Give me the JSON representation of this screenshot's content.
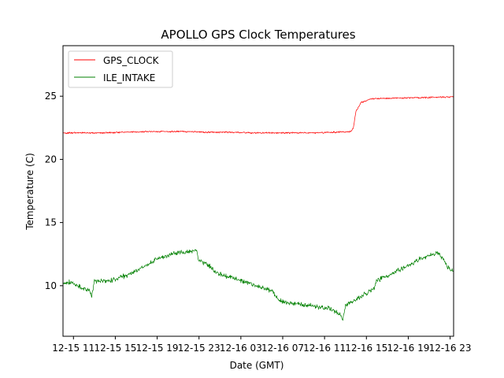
{
  "chart_data": {
    "type": "line",
    "title": "APOLLO GPS Clock Temperatures",
    "xlabel": "Date (GMT)",
    "ylabel": "Temperature (C)",
    "x_ticks": [
      {
        "value": "2020-12-15 11:00",
        "label": "12-15 11"
      },
      {
        "value": "2020-12-15 15:00",
        "label": "12-15 15"
      },
      {
        "value": "2020-12-15 19:00",
        "label": "12-15 19"
      },
      {
        "value": "2020-12-15 23:00",
        "label": "12-15 23"
      },
      {
        "value": "2020-12-16 03:00",
        "label": "12-16 03"
      },
      {
        "value": "2020-12-16 07:00",
        "label": "12-16 07"
      },
      {
        "value": "2020-12-16 11:00",
        "label": "12-16 11"
      },
      {
        "value": "2020-12-16 15:00",
        "label": "12-16 15"
      },
      {
        "value": "2020-12-16 19:00",
        "label": "12-16 19"
      },
      {
        "value": "2020-12-16 23:00",
        "label": "12-16 23"
      }
    ],
    "y_ticks": [
      10,
      15,
      20,
      25
    ],
    "xlim": [
      "2020-12-15 10:00",
      "2020-12-16 23:20"
    ],
    "ylim": [
      6.0,
      29.0
    ],
    "grid": false,
    "legend": "upper-left",
    "series": [
      {
        "name": "GPS_CLOCK",
        "color": "#ff0000",
        "points": [
          [
            "2020-12-15 10:00",
            22.1
          ],
          [
            "2020-12-15 12:00",
            22.1
          ],
          [
            "2020-12-15 14:00",
            22.1
          ],
          [
            "2020-12-15 16:00",
            22.15
          ],
          [
            "2020-12-15 18:00",
            22.2
          ],
          [
            "2020-12-15 20:00",
            22.2
          ],
          [
            "2020-12-15 22:00",
            22.2
          ],
          [
            "2020-12-16 00:00",
            22.15
          ],
          [
            "2020-12-16 02:00",
            22.15
          ],
          [
            "2020-12-16 04:00",
            22.1
          ],
          [
            "2020-12-16 06:00",
            22.1
          ],
          [
            "2020-12-16 08:00",
            22.1
          ],
          [
            "2020-12-16 10:00",
            22.1
          ],
          [
            "2020-12-16 12:00",
            22.15
          ],
          [
            "2020-12-16 13:30",
            22.2
          ],
          [
            "2020-12-16 13:45",
            22.5
          ],
          [
            "2020-12-16 14:00",
            23.8
          ],
          [
            "2020-12-16 14:30",
            24.5
          ],
          [
            "2020-12-16 15:30",
            24.8
          ],
          [
            "2020-12-16 18:00",
            24.85
          ],
          [
            "2020-12-16 21:00",
            24.9
          ],
          [
            "2020-12-16 23:20",
            24.95
          ]
        ]
      },
      {
        "name": "ILE_INTAKE",
        "color": "#008000",
        "points": [
          [
            "2020-12-15 10:00",
            10.2
          ],
          [
            "2020-12-15 10:40",
            10.3
          ],
          [
            "2020-12-15 11:40",
            9.9
          ],
          [
            "2020-12-15 12:30",
            9.6
          ],
          [
            "2020-12-15 12:45",
            9.2
          ],
          [
            "2020-12-15 13:00",
            10.4
          ],
          [
            "2020-12-15 14:00",
            10.4
          ],
          [
            "2020-12-15 15:00",
            10.5
          ],
          [
            "2020-12-15 16:00",
            10.8
          ],
          [
            "2020-12-15 17:00",
            11.2
          ],
          [
            "2020-12-15 18:00",
            11.6
          ],
          [
            "2020-12-15 19:00",
            12.1
          ],
          [
            "2020-12-15 20:00",
            12.4
          ],
          [
            "2020-12-15 21:00",
            12.6
          ],
          [
            "2020-12-15 22:00",
            12.7
          ],
          [
            "2020-12-15 22:45",
            12.8
          ],
          [
            "2020-12-15 23:00",
            12.0
          ],
          [
            "2020-12-16 00:00",
            11.6
          ],
          [
            "2020-12-16 00:30",
            11.1
          ],
          [
            "2020-12-16 01:30",
            10.8
          ],
          [
            "2020-12-16 03:00",
            10.4
          ],
          [
            "2020-12-16 04:30",
            10.0
          ],
          [
            "2020-12-16 06:00",
            9.6
          ],
          [
            "2020-12-16 06:30",
            9.0
          ],
          [
            "2020-12-16 07:00",
            8.7
          ],
          [
            "2020-12-16 09:00",
            8.5
          ],
          [
            "2020-12-16 10:30",
            8.3
          ],
          [
            "2020-12-16 11:30",
            8.2
          ],
          [
            "2020-12-16 12:30",
            7.7
          ],
          [
            "2020-12-16 12:45",
            7.2
          ],
          [
            "2020-12-16 13:00",
            8.4
          ],
          [
            "2020-12-16 14:00",
            8.9
          ],
          [
            "2020-12-16 15:00",
            9.4
          ],
          [
            "2020-12-16 15:45",
            9.8
          ],
          [
            "2020-12-16 16:00",
            10.4
          ],
          [
            "2020-12-16 17:00",
            10.8
          ],
          [
            "2020-12-16 18:00",
            11.2
          ],
          [
            "2020-12-16 19:00",
            11.6
          ],
          [
            "2020-12-16 20:00",
            12.1
          ],
          [
            "2020-12-16 21:00",
            12.4
          ],
          [
            "2020-12-16 21:45",
            12.6
          ],
          [
            "2020-12-16 22:15",
            12.2
          ],
          [
            "2020-12-16 22:45",
            11.5
          ],
          [
            "2020-12-16 23:20",
            11.1
          ]
        ]
      }
    ]
  }
}
